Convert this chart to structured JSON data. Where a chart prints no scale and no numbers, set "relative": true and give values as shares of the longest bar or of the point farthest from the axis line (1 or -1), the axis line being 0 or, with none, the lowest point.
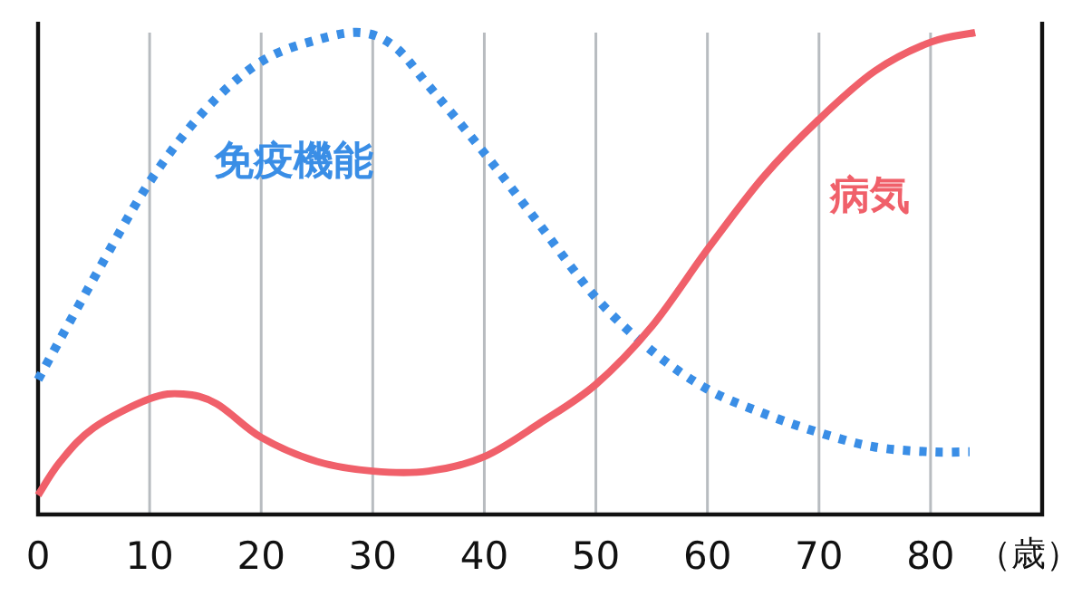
{
  "chart_data": {
    "type": "line",
    "relative": true,
    "xlabel": "（歳）",
    "xlim": [
      0,
      90
    ],
    "xticks": [
      0,
      10,
      20,
      30,
      40,
      50,
      60,
      70,
      80
    ],
    "grid": "x",
    "series": [
      {
        "name": "免疫機能",
        "color": "#3a8ee6",
        "line_style": "dotted",
        "x": [
          0,
          5,
          10,
          15,
          20,
          25,
          29,
          32,
          35,
          40,
          45,
          50,
          55,
          60,
          65,
          70,
          75,
          80,
          83.5
        ],
        "values": [
          0.28,
          0.49,
          0.69,
          0.84,
          0.94,
          0.985,
          1.0,
          0.97,
          0.89,
          0.75,
          0.6,
          0.45,
          0.34,
          0.26,
          0.21,
          0.17,
          0.14,
          0.13,
          0.13
        ]
      },
      {
        "name": "病気",
        "color": "#f0606a",
        "line_style": "solid",
        "x": [
          0,
          2,
          5,
          10,
          13,
          16,
          20,
          25,
          30,
          35,
          40,
          45,
          50,
          55,
          60,
          65,
          70,
          75,
          80,
          84
        ],
        "values": [
          0.04,
          0.11,
          0.18,
          0.24,
          0.25,
          0.23,
          0.16,
          0.11,
          0.09,
          0.09,
          0.12,
          0.19,
          0.27,
          0.39,
          0.55,
          0.7,
          0.82,
          0.92,
          0.98,
          1.0
        ]
      }
    ]
  }
}
